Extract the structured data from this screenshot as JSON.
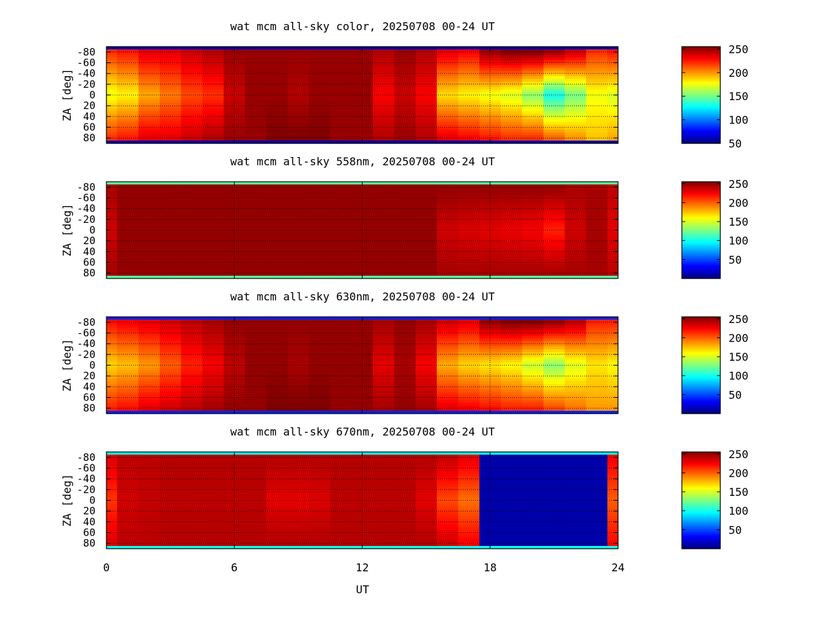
{
  "chart_data": [
    {
      "type": "heatmap",
      "title": "wat mcm all-sky color, 20250708 00-24 UT",
      "ylabel": "ZA [deg]",
      "xlabel": "",
      "xlim": [
        0,
        24
      ],
      "ylim": [
        -90,
        90
      ],
      "x_ticks": [
        0,
        6,
        12,
        18,
        24
      ],
      "y_tick_labels": [
        "-80",
        "-60",
        "-40",
        "-20",
        "0",
        "20",
        "40",
        "60",
        "80"
      ],
      "colorbar": {
        "range": [
          50,
          255
        ],
        "tick_labels": [
          "250",
          "200",
          "150",
          "100",
          "50"
        ],
        "colormap": "jet"
      },
      "grid": true,
      "x": [
        0,
        1,
        2,
        3,
        4,
        5,
        6,
        7,
        8,
        9,
        10,
        11,
        12,
        13,
        14,
        15,
        16,
        17,
        18,
        19,
        20,
        21,
        22,
        23,
        24
      ],
      "edge_value": 60,
      "zenith_rows": [
        {
          "za": -80,
          "values": [
            220,
            225,
            235,
            235,
            240,
            245,
            250,
            250,
            250,
            250,
            250,
            250,
            250,
            245,
            250,
            245,
            235,
            230,
            250,
            255,
            255,
            250,
            240,
            220,
            225
          ]
        },
        {
          "za": 0,
          "values": [
            175,
            180,
            195,
            205,
            215,
            220,
            240,
            250,
            250,
            245,
            250,
            250,
            250,
            230,
            240,
            230,
            185,
            180,
            175,
            170,
            155,
            130,
            150,
            175,
            170
          ]
        },
        {
          "za": 80,
          "values": [
            220,
            225,
            235,
            235,
            240,
            245,
            250,
            250,
            255,
            255,
            255,
            250,
            250,
            245,
            250,
            245,
            235,
            230,
            225,
            220,
            220,
            210,
            200,
            190,
            195
          ]
        }
      ]
    },
    {
      "type": "heatmap",
      "title": "wat mcm all-sky 558nm, 20250708 00-24 UT",
      "ylabel": "ZA [deg]",
      "xlabel": "",
      "xlim": [
        0,
        24
      ],
      "ylim": [
        -90,
        90
      ],
      "x_ticks": [
        0,
        6,
        12,
        18,
        24
      ],
      "y_tick_labels": [
        "-80",
        "-60",
        "-40",
        "-20",
        "0",
        "20",
        "40",
        "60",
        "80"
      ],
      "colorbar": {
        "range": [
          0,
          255
        ],
        "tick_labels": [
          "250",
          "200",
          "150",
          "100",
          "50"
        ],
        "colormap": "jet"
      },
      "grid": true,
      "x": [
        0,
        1,
        2,
        3,
        4,
        5,
        6,
        7,
        8,
        9,
        10,
        11,
        12,
        13,
        14,
        15,
        16,
        17,
        18,
        19,
        20,
        21,
        22,
        23,
        24
      ],
      "edge_value": 120,
      "zenith_rows": [
        {
          "za": -80,
          "values": [
            245,
            250,
            250,
            250,
            250,
            250,
            250,
            250,
            250,
            250,
            250,
            250,
            250,
            250,
            250,
            250,
            250,
            250,
            250,
            250,
            250,
            250,
            245,
            245,
            240
          ]
        },
        {
          "za": 0,
          "values": [
            235,
            250,
            250,
            250,
            250,
            250,
            250,
            250,
            250,
            250,
            250,
            250,
            250,
            250,
            250,
            250,
            235,
            232,
            230,
            228,
            225,
            215,
            235,
            245,
            230
          ]
        },
        {
          "za": 80,
          "values": [
            245,
            250,
            250,
            250,
            250,
            250,
            250,
            250,
            250,
            250,
            250,
            250,
            250,
            250,
            250,
            250,
            245,
            245,
            245,
            245,
            245,
            245,
            245,
            245,
            240
          ]
        }
      ]
    },
    {
      "type": "heatmap",
      "title": "wat mcm all-sky 630nm, 20250708 00-24 UT",
      "ylabel": "ZA [deg]",
      "xlabel": "",
      "xlim": [
        0,
        24
      ],
      "ylim": [
        -90,
        90
      ],
      "x_ticks": [
        0,
        6,
        12,
        18,
        24
      ],
      "y_tick_labels": [
        "-80",
        "-60",
        "-40",
        "-20",
        "0",
        "20",
        "40",
        "60",
        "80"
      ],
      "colorbar": {
        "range": [
          0,
          255
        ],
        "tick_labels": [
          "250",
          "200",
          "150",
          "100",
          "50"
        ],
        "colormap": "jet"
      },
      "grid": true,
      "x": [
        0,
        1,
        2,
        3,
        4,
        5,
        6,
        7,
        8,
        9,
        10,
        11,
        12,
        13,
        14,
        15,
        16,
        17,
        18,
        19,
        20,
        21,
        22,
        23,
        24
      ],
      "edge_value": 40,
      "zenith_rows": [
        {
          "za": -80,
          "values": [
            220,
            225,
            230,
            235,
            240,
            245,
            250,
            250,
            250,
            250,
            250,
            250,
            250,
            245,
            250,
            245,
            235,
            230,
            250,
            255,
            255,
            250,
            240,
            215,
            215
          ]
        },
        {
          "za": 0,
          "values": [
            170,
            175,
            185,
            200,
            215,
            225,
            240,
            250,
            250,
            245,
            250,
            250,
            250,
            230,
            245,
            225,
            180,
            170,
            165,
            160,
            145,
            130,
            150,
            165,
            160
          ]
        },
        {
          "za": 80,
          "values": [
            215,
            220,
            230,
            235,
            240,
            245,
            250,
            250,
            255,
            255,
            255,
            250,
            250,
            245,
            250,
            245,
            230,
            225,
            220,
            215,
            215,
            205,
            195,
            185,
            185
          ]
        }
      ]
    },
    {
      "type": "heatmap",
      "title": "wat mcm all-sky 670nm, 20250708 00-24 UT",
      "ylabel": "ZA [deg]",
      "xlabel": "UT",
      "xlim": [
        0,
        24
      ],
      "ylim": [
        -90,
        90
      ],
      "x_ticks": [
        0,
        6,
        12,
        18,
        24
      ],
      "x_tick_labels": [
        "0",
        "6",
        "12",
        "18",
        "24"
      ],
      "y_tick_labels": [
        "-80",
        "-60",
        "-40",
        "-20",
        "0",
        "20",
        "40",
        "60",
        "80"
      ],
      "colorbar": {
        "range": [
          0,
          255
        ],
        "tick_labels": [
          "250",
          "200",
          "150",
          "100",
          "50"
        ],
        "colormap": "jet"
      },
      "grid": true,
      "x": [
        0,
        1,
        2,
        3,
        4,
        5,
        6,
        7,
        8,
        9,
        10,
        11,
        12,
        13,
        14,
        15,
        16,
        17,
        18,
        19,
        20,
        21,
        22,
        23,
        24
      ],
      "edge_value": 100,
      "zenith_rows": [
        {
          "za": -80,
          "values": [
            232,
            240,
            240,
            242,
            242,
            242,
            242,
            242,
            242,
            242,
            242,
            242,
            242,
            242,
            242,
            242,
            238,
            230,
            10,
            10,
            10,
            10,
            10,
            10,
            225
          ]
        },
        {
          "za": 0,
          "values": [
            210,
            235,
            238,
            240,
            240,
            240,
            240,
            240,
            230,
            230,
            232,
            240,
            240,
            240,
            240,
            230,
            205,
            195,
            10,
            10,
            10,
            10,
            10,
            10,
            200
          ]
        },
        {
          "za": 80,
          "values": [
            232,
            240,
            240,
            242,
            242,
            242,
            242,
            242,
            242,
            242,
            242,
            242,
            242,
            242,
            242,
            242,
            235,
            225,
            10,
            10,
            10,
            10,
            10,
            10,
            222
          ]
        }
      ]
    }
  ]
}
